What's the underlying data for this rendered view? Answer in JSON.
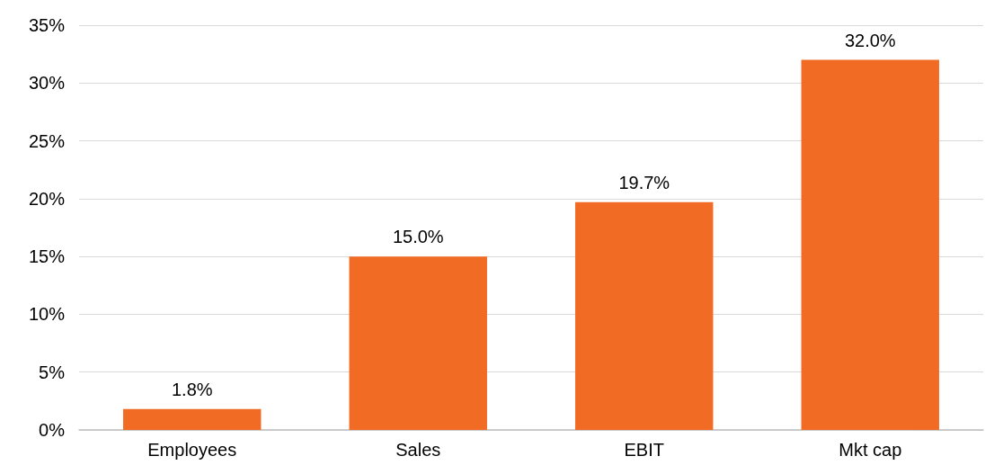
{
  "chart_data": {
    "type": "bar",
    "categories": [
      "Employees",
      "Sales",
      "EBIT",
      "Mkt cap"
    ],
    "values": [
      1.8,
      15.0,
      19.7,
      32.0
    ],
    "value_labels": [
      "1.8%",
      "15.0%",
      "19.7%",
      "32.0%"
    ],
    "color": "#f26b24",
    "ylim": [
      0,
      35
    ],
    "yticks": [
      {
        "value": 0,
        "label": "0%"
      },
      {
        "value": 5,
        "label": "5%"
      },
      {
        "value": 10,
        "label": "10%"
      },
      {
        "value": 15,
        "label": "15%"
      },
      {
        "value": 20,
        "label": "20%"
      },
      {
        "value": 25,
        "label": "25%"
      },
      {
        "value": 30,
        "label": "30%"
      },
      {
        "value": 35,
        "label": "35%"
      }
    ],
    "grid": "y"
  }
}
